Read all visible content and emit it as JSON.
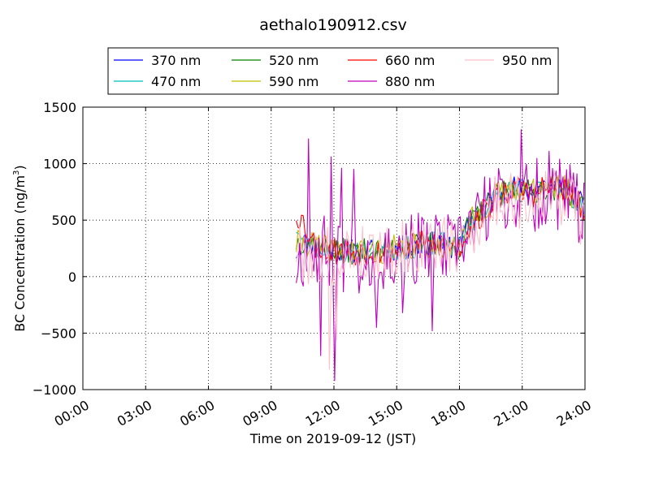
{
  "chart_data": {
    "type": "line",
    "title": "aethalo190912.csv",
    "xlabel": "Time on 2019-09-12 (JST)",
    "ylabel_main": "BC Concentration (ng/m",
    "ylabel_sup": "3",
    "ylabel_tail": ")",
    "xlim": [
      0,
      24
    ],
    "ylim": [
      -1000,
      1500
    ],
    "xticks": [
      {
        "v": 0,
        "label": "00:00"
      },
      {
        "v": 3,
        "label": "03:00"
      },
      {
        "v": 6,
        "label": "06:00"
      },
      {
        "v": 9,
        "label": "09:00"
      },
      {
        "v": 12,
        "label": "12:00"
      },
      {
        "v": 15,
        "label": "15:00"
      },
      {
        "v": 18,
        "label": "18:00"
      },
      {
        "v": 21,
        "label": "21:00"
      },
      {
        "v": 24,
        "label": "24:00"
      }
    ],
    "yticks": [
      {
        "v": -1000,
        "label": "−1000"
      },
      {
        "v": -500,
        "label": "−500"
      },
      {
        "v": 0,
        "label": "0"
      },
      {
        "v": 500,
        "label": "500"
      },
      {
        "v": 1000,
        "label": "1000"
      },
      {
        "v": 1500,
        "label": "1500"
      }
    ],
    "grid": true,
    "legend_position": "top-center",
    "series": [
      {
        "name": "370 nm",
        "color": "#0000ff",
        "noise": 110,
        "seed": 11,
        "spikes": [],
        "anchors": [
          [
            10.2,
            220
          ],
          [
            10.5,
            300
          ],
          [
            11.0,
            280
          ],
          [
            11.5,
            250
          ],
          [
            12.0,
            230
          ],
          [
            13.0,
            220
          ],
          [
            14.0,
            230
          ],
          [
            15.0,
            250
          ],
          [
            16.0,
            270
          ],
          [
            17.0,
            300
          ],
          [
            18.0,
            250
          ],
          [
            18.5,
            500
          ],
          [
            19.0,
            580
          ],
          [
            19.5,
            680
          ],
          [
            20.0,
            760
          ],
          [
            20.5,
            800
          ],
          [
            21.0,
            760
          ],
          [
            21.5,
            760
          ],
          [
            22.0,
            820
          ],
          [
            22.5,
            800
          ],
          [
            23.0,
            800
          ],
          [
            23.5,
            720
          ],
          [
            24.0,
            600
          ]
        ]
      },
      {
        "name": "470 nm",
        "color": "#00bfbf",
        "noise": 110,
        "seed": 23,
        "spikes": [],
        "anchors": [
          [
            10.2,
            450
          ],
          [
            10.5,
            300
          ],
          [
            11.0,
            280
          ],
          [
            11.5,
            250
          ],
          [
            12.0,
            230
          ],
          [
            13.0,
            220
          ],
          [
            14.0,
            230
          ],
          [
            15.0,
            250
          ],
          [
            16.0,
            270
          ],
          [
            17.0,
            300
          ],
          [
            18.0,
            250
          ],
          [
            18.5,
            480
          ],
          [
            19.0,
            560
          ],
          [
            19.5,
            660
          ],
          [
            20.0,
            740
          ],
          [
            20.5,
            780
          ],
          [
            21.0,
            760
          ],
          [
            21.5,
            740
          ],
          [
            22.0,
            800
          ],
          [
            22.5,
            780
          ],
          [
            23.0,
            780
          ],
          [
            23.5,
            700
          ],
          [
            24.0,
            580
          ]
        ]
      },
      {
        "name": "520 nm",
        "color": "#008000",
        "noise": 115,
        "seed": 37,
        "spikes": [],
        "anchors": [
          [
            10.2,
            300
          ],
          [
            10.5,
            320
          ],
          [
            11.0,
            280
          ],
          [
            11.5,
            250
          ],
          [
            12.0,
            230
          ],
          [
            13.0,
            220
          ],
          [
            14.0,
            230
          ],
          [
            15.0,
            250
          ],
          [
            16.0,
            270
          ],
          [
            17.0,
            300
          ],
          [
            18.0,
            250
          ],
          [
            18.5,
            480
          ],
          [
            19.0,
            560
          ],
          [
            19.5,
            660
          ],
          [
            20.0,
            740
          ],
          [
            20.5,
            780
          ],
          [
            21.0,
            760
          ],
          [
            21.5,
            740
          ],
          [
            22.0,
            800
          ],
          [
            22.5,
            780
          ],
          [
            23.0,
            780
          ],
          [
            23.5,
            700
          ],
          [
            24.0,
            580
          ]
        ]
      },
      {
        "name": "590 nm",
        "color": "#bfbf00",
        "noise": 125,
        "seed": 41,
        "spikes": [],
        "anchors": [
          [
            10.2,
            280
          ],
          [
            10.5,
            300
          ],
          [
            11.0,
            280
          ],
          [
            11.5,
            250
          ],
          [
            12.0,
            230
          ],
          [
            13.0,
            220
          ],
          [
            14.0,
            230
          ],
          [
            15.0,
            250
          ],
          [
            16.0,
            270
          ],
          [
            17.0,
            300
          ],
          [
            18.0,
            250
          ],
          [
            18.5,
            480
          ],
          [
            19.0,
            560
          ],
          [
            19.5,
            660
          ],
          [
            20.0,
            740
          ],
          [
            20.5,
            800
          ],
          [
            21.0,
            800
          ],
          [
            21.5,
            740
          ],
          [
            22.0,
            800
          ],
          [
            22.5,
            780
          ],
          [
            23.0,
            780
          ],
          [
            23.5,
            700
          ],
          [
            24.0,
            580
          ]
        ]
      },
      {
        "name": "660 nm",
        "color": "#ff0000",
        "noise": 130,
        "seed": 53,
        "spikes": [],
        "anchors": [
          [
            10.2,
            560
          ],
          [
            10.5,
            500
          ],
          [
            11.0,
            300
          ],
          [
            11.5,
            260
          ],
          [
            12.0,
            230
          ],
          [
            13.0,
            220
          ],
          [
            14.0,
            230
          ],
          [
            15.0,
            250
          ],
          [
            16.0,
            270
          ],
          [
            17.0,
            300
          ],
          [
            18.0,
            250
          ],
          [
            18.5,
            460
          ],
          [
            19.0,
            540
          ],
          [
            19.5,
            640
          ],
          [
            20.0,
            720
          ],
          [
            20.5,
            780
          ],
          [
            21.0,
            760
          ],
          [
            21.5,
            740
          ],
          [
            22.0,
            780
          ],
          [
            22.5,
            760
          ],
          [
            23.0,
            760
          ],
          [
            23.5,
            680
          ],
          [
            24.0,
            560
          ]
        ]
      },
      {
        "name": "880 nm",
        "color": "#bf00bf",
        "noise": 330,
        "seed": 67,
        "spikes": [
          [
            10.78,
            1220
          ],
          [
            11.35,
            -700
          ],
          [
            11.9,
            1060
          ],
          [
            12.05,
            -920
          ],
          [
            12.35,
            960
          ],
          [
            12.95,
            950
          ],
          [
            14.05,
            -450
          ],
          [
            15.3,
            -320
          ],
          [
            16.7,
            -480
          ],
          [
            20.95,
            1300
          ],
          [
            22.3,
            1110
          ]
        ],
        "anchors": [
          [
            10.2,
            100
          ],
          [
            10.5,
            220
          ],
          [
            11.0,
            250
          ],
          [
            11.5,
            230
          ],
          [
            12.0,
            200
          ],
          [
            13.0,
            180
          ],
          [
            14.0,
            200
          ],
          [
            15.0,
            220
          ],
          [
            16.0,
            240
          ],
          [
            17.0,
            260
          ],
          [
            18.0,
            230
          ],
          [
            18.5,
            450
          ],
          [
            19.0,
            520
          ],
          [
            19.5,
            620
          ],
          [
            20.0,
            700
          ],
          [
            20.5,
            700
          ],
          [
            21.0,
            720
          ],
          [
            21.5,
            700
          ],
          [
            22.0,
            760
          ],
          [
            22.5,
            720
          ],
          [
            23.0,
            720
          ],
          [
            23.5,
            640
          ],
          [
            24.0,
            520
          ]
        ]
      },
      {
        "name": "950 nm",
        "color": "#ffc0cb",
        "noise": 260,
        "seed": 79,
        "spikes": [
          [
            11.75,
            -820
          ],
          [
            12.1,
            -560
          ]
        ],
        "anchors": [
          [
            10.2,
            250
          ],
          [
            10.5,
            200
          ],
          [
            11.0,
            180
          ],
          [
            11.5,
            200
          ],
          [
            12.0,
            180
          ],
          [
            13.0,
            200
          ],
          [
            14.0,
            220
          ],
          [
            15.0,
            240
          ],
          [
            16.0,
            260
          ],
          [
            17.0,
            300
          ],
          [
            18.0,
            220
          ],
          [
            18.5,
            420
          ],
          [
            19.0,
            500
          ],
          [
            19.5,
            600
          ],
          [
            20.0,
            680
          ],
          [
            20.5,
            700
          ],
          [
            21.0,
            680
          ],
          [
            21.5,
            660
          ],
          [
            22.0,
            740
          ],
          [
            22.5,
            700
          ],
          [
            23.0,
            700
          ],
          [
            23.5,
            620
          ],
          [
            24.0,
            480
          ]
        ]
      }
    ]
  }
}
